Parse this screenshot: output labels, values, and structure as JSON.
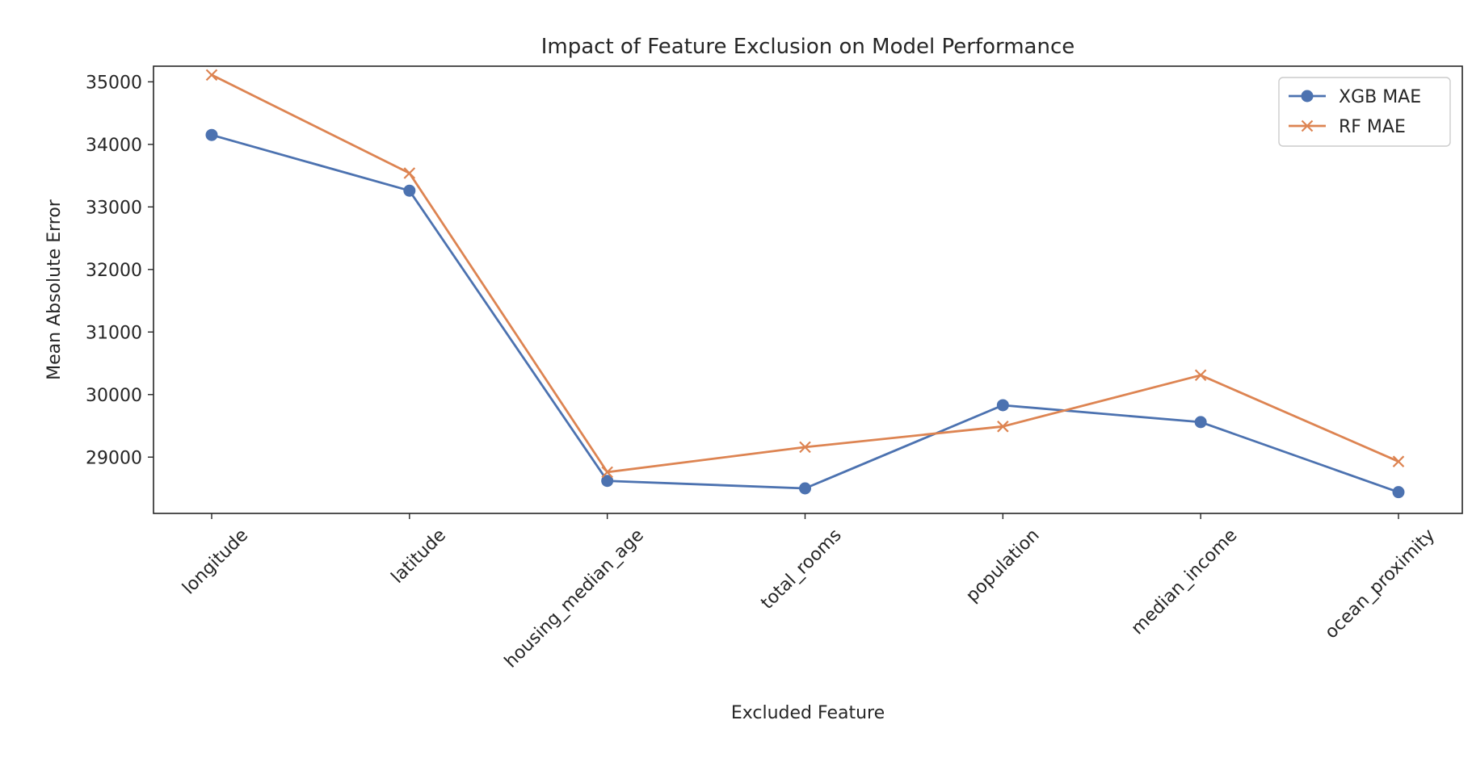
{
  "chart_data": {
    "type": "line",
    "title": "Impact of Feature Exclusion on Model Performance",
    "xlabel": "Excluded Feature",
    "ylabel": "Mean Absolute Error",
    "categories": [
      "longitude",
      "latitude",
      "housing_median_age",
      "total_rooms",
      "population",
      "median_income",
      "ocean_proximity"
    ],
    "yticks": [
      29000,
      30000,
      31000,
      32000,
      33000,
      34000,
      35000
    ],
    "ylim": [
      28100,
      35250
    ],
    "grid": false,
    "legend_position": "top-right",
    "series": [
      {
        "name": "XGB MAE",
        "color": "#4c72b0",
        "marker": "circle",
        "values": [
          34150,
          33260,
          28620,
          28500,
          29830,
          29560,
          28440
        ]
      },
      {
        "name": "RF MAE",
        "color": "#dd8452",
        "marker": "x",
        "values": [
          35110,
          33540,
          28760,
          29160,
          29490,
          30310,
          28930
        ]
      }
    ]
  }
}
